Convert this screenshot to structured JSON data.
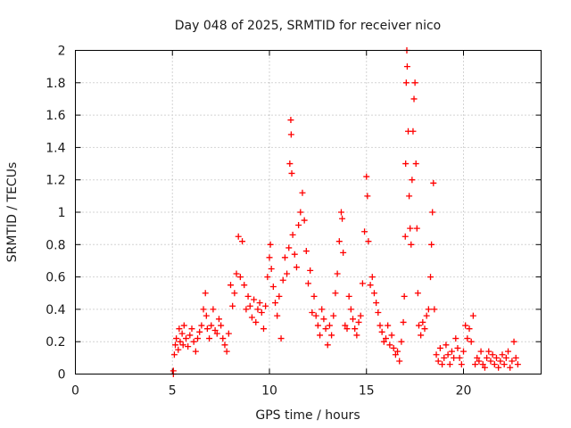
{
  "chart_data": {
    "type": "scatter",
    "title": "Day 048 of 2025, SRMTID for receiver nico",
    "xlabel": "GPS time / hours",
    "ylabel": "SRMTID / TECUs",
    "xlim": [
      0,
      24
    ],
    "ylim": [
      0,
      2
    ],
    "x_ticks": [
      0,
      5,
      10,
      15,
      20
    ],
    "x_tick_labels": [
      "0",
      "5",
      "10",
      "15",
      "20"
    ],
    "y_ticks": [
      0,
      0.2,
      0.4,
      0.6,
      0.8,
      1,
      1.2,
      1.4,
      1.6,
      1.8,
      2
    ],
    "y_tick_labels": [
      "0",
      "0.2",
      "0.4",
      "0.6",
      "0.8",
      "1",
      "1.2",
      "1.4",
      "1.6",
      "1.8",
      "2"
    ],
    "grid": true,
    "marker": "+",
    "series": [
      {
        "name": "SRMTID",
        "color": "#ff0000",
        "points": [
          [
            5.05,
            0.0
          ],
          [
            5.05,
            0.02
          ],
          [
            5.1,
            0.12
          ],
          [
            5.15,
            0.18
          ],
          [
            5.2,
            0.22
          ],
          [
            5.3,
            0.15
          ],
          [
            5.35,
            0.28
          ],
          [
            5.4,
            0.2
          ],
          [
            5.5,
            0.25
          ],
          [
            5.55,
            0.18
          ],
          [
            5.6,
            0.3
          ],
          [
            5.7,
            0.22
          ],
          [
            5.8,
            0.17
          ],
          [
            5.9,
            0.24
          ],
          [
            6.0,
            0.28
          ],
          [
            6.1,
            0.2
          ],
          [
            6.2,
            0.14
          ],
          [
            6.3,
            0.22
          ],
          [
            6.4,
            0.26
          ],
          [
            6.5,
            0.3
          ],
          [
            6.6,
            0.4
          ],
          [
            6.7,
            0.5
          ],
          [
            6.75,
            0.36
          ],
          [
            6.8,
            0.28
          ],
          [
            6.9,
            0.22
          ],
          [
            7.0,
            0.3
          ],
          [
            7.1,
            0.4
          ],
          [
            7.2,
            0.27
          ],
          [
            7.3,
            0.25
          ],
          [
            7.4,
            0.34
          ],
          [
            7.5,
            0.3
          ],
          [
            7.6,
            0.22
          ],
          [
            7.7,
            0.18
          ],
          [
            7.8,
            0.14
          ],
          [
            7.9,
            0.25
          ],
          [
            8.0,
            0.55
          ],
          [
            8.1,
            0.42
          ],
          [
            8.2,
            0.5
          ],
          [
            8.3,
            0.62
          ],
          [
            8.4,
            0.85
          ],
          [
            8.5,
            0.6
          ],
          [
            8.6,
            0.82
          ],
          [
            8.7,
            0.55
          ],
          [
            8.8,
            0.4
          ],
          [
            8.9,
            0.48
          ],
          [
            9.0,
            0.42
          ],
          [
            9.1,
            0.35
          ],
          [
            9.2,
            0.46
          ],
          [
            9.3,
            0.32
          ],
          [
            9.4,
            0.4
          ],
          [
            9.5,
            0.44
          ],
          [
            9.6,
            0.38
          ],
          [
            9.7,
            0.28
          ],
          [
            9.8,
            0.42
          ],
          [
            9.9,
            0.6
          ],
          [
            10.0,
            0.72
          ],
          [
            10.05,
            0.8
          ],
          [
            10.1,
            0.65
          ],
          [
            10.2,
            0.54
          ],
          [
            10.3,
            0.44
          ],
          [
            10.4,
            0.36
          ],
          [
            10.5,
            0.48
          ],
          [
            10.6,
            0.22
          ],
          [
            10.7,
            0.58
          ],
          [
            10.8,
            0.72
          ],
          [
            10.9,
            0.62
          ],
          [
            11.0,
            0.78
          ],
          [
            11.05,
            1.3
          ],
          [
            11.1,
            1.57
          ],
          [
            11.12,
            1.48
          ],
          [
            11.15,
            1.24
          ],
          [
            11.2,
            0.86
          ],
          [
            11.3,
            0.74
          ],
          [
            11.4,
            0.66
          ],
          [
            11.5,
            0.92
          ],
          [
            11.6,
            1.0
          ],
          [
            11.7,
            1.12
          ],
          [
            11.8,
            0.95
          ],
          [
            11.9,
            0.76
          ],
          [
            12.0,
            0.56
          ],
          [
            12.1,
            0.64
          ],
          [
            12.2,
            0.38
          ],
          [
            12.3,
            0.48
          ],
          [
            12.4,
            0.36
          ],
          [
            12.5,
            0.3
          ],
          [
            12.6,
            0.24
          ],
          [
            12.7,
            0.4
          ],
          [
            12.8,
            0.34
          ],
          [
            12.9,
            0.28
          ],
          [
            13.0,
            0.18
          ],
          [
            13.1,
            0.3
          ],
          [
            13.2,
            0.24
          ],
          [
            13.3,
            0.36
          ],
          [
            13.4,
            0.5
          ],
          [
            13.5,
            0.62
          ],
          [
            13.6,
            0.82
          ],
          [
            13.7,
            1.0
          ],
          [
            13.75,
            0.96
          ],
          [
            13.8,
            0.75
          ],
          [
            13.9,
            0.3
          ],
          [
            14.0,
            0.28
          ],
          [
            14.1,
            0.48
          ],
          [
            14.2,
            0.4
          ],
          [
            14.3,
            0.34
          ],
          [
            14.4,
            0.28
          ],
          [
            14.5,
            0.24
          ],
          [
            14.6,
            0.32
          ],
          [
            14.7,
            0.36
          ],
          [
            14.8,
            0.56
          ],
          [
            14.9,
            0.88
          ],
          [
            15.0,
            1.22
          ],
          [
            15.05,
            1.1
          ],
          [
            15.1,
            0.82
          ],
          [
            15.2,
            0.55
          ],
          [
            15.3,
            0.6
          ],
          [
            15.4,
            0.5
          ],
          [
            15.5,
            0.44
          ],
          [
            15.6,
            0.38
          ],
          [
            15.7,
            0.3
          ],
          [
            15.8,
            0.26
          ],
          [
            15.9,
            0.2
          ],
          [
            16.0,
            0.22
          ],
          [
            16.1,
            0.3
          ],
          [
            16.2,
            0.18
          ],
          [
            16.3,
            0.24
          ],
          [
            16.4,
            0.16
          ],
          [
            16.5,
            0.12
          ],
          [
            16.6,
            0.14
          ],
          [
            16.7,
            0.08
          ],
          [
            16.8,
            0.2
          ],
          [
            16.9,
            0.32
          ],
          [
            16.95,
            0.48
          ],
          [
            17.0,
            0.85
          ],
          [
            17.02,
            1.3
          ],
          [
            17.05,
            1.8
          ],
          [
            17.08,
            2.0
          ],
          [
            17.1,
            1.9
          ],
          [
            17.15,
            1.5
          ],
          [
            17.2,
            1.1
          ],
          [
            17.25,
            0.9
          ],
          [
            17.3,
            0.8
          ],
          [
            17.35,
            1.2
          ],
          [
            17.4,
            1.5
          ],
          [
            17.45,
            1.7
          ],
          [
            17.5,
            1.8
          ],
          [
            17.55,
            1.3
          ],
          [
            17.6,
            0.9
          ],
          [
            17.65,
            0.5
          ],
          [
            17.7,
            0.3
          ],
          [
            17.8,
            0.24
          ],
          [
            17.9,
            0.32
          ],
          [
            18.0,
            0.28
          ],
          [
            18.1,
            0.36
          ],
          [
            18.2,
            0.4
          ],
          [
            18.3,
            0.6
          ],
          [
            18.35,
            0.8
          ],
          [
            18.4,
            1.0
          ],
          [
            18.45,
            1.18
          ],
          [
            18.5,
            0.4
          ],
          [
            18.6,
            0.12
          ],
          [
            18.7,
            0.08
          ],
          [
            18.8,
            0.16
          ],
          [
            18.9,
            0.06
          ],
          [
            19.0,
            0.1
          ],
          [
            19.1,
            0.18
          ],
          [
            19.2,
            0.12
          ],
          [
            19.3,
            0.06
          ],
          [
            19.4,
            0.14
          ],
          [
            19.5,
            0.1
          ],
          [
            19.6,
            0.22
          ],
          [
            19.7,
            0.16
          ],
          [
            19.8,
            0.1
          ],
          [
            19.9,
            0.06
          ],
          [
            20.0,
            0.14
          ],
          [
            20.1,
            0.3
          ],
          [
            20.2,
            0.22
          ],
          [
            20.3,
            0.28
          ],
          [
            20.4,
            0.2
          ],
          [
            20.5,
            0.36
          ],
          [
            20.6,
            0.06
          ],
          [
            20.7,
            0.1
          ],
          [
            20.8,
            0.08
          ],
          [
            20.9,
            0.14
          ],
          [
            21.0,
            0.06
          ],
          [
            21.1,
            0.04
          ],
          [
            21.2,
            0.1
          ],
          [
            21.3,
            0.14
          ],
          [
            21.4,
            0.08
          ],
          [
            21.5,
            0.12
          ],
          [
            21.6,
            0.06
          ],
          [
            21.7,
            0.1
          ],
          [
            21.8,
            0.04
          ],
          [
            21.9,
            0.08
          ],
          [
            22.0,
            0.12
          ],
          [
            22.1,
            0.06
          ],
          [
            22.2,
            0.1
          ],
          [
            22.3,
            0.14
          ],
          [
            22.4,
            0.04
          ],
          [
            22.5,
            0.08
          ],
          [
            22.6,
            0.2
          ],
          [
            22.7,
            0.1
          ],
          [
            22.8,
            0.06
          ]
        ]
      }
    ]
  }
}
